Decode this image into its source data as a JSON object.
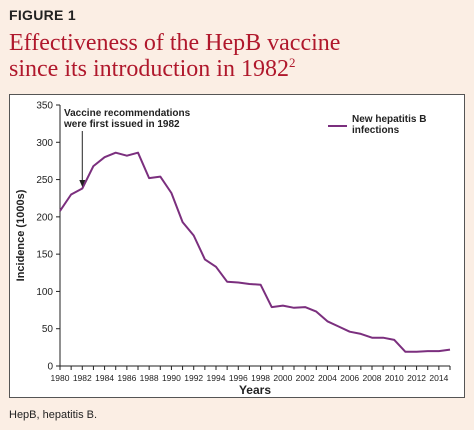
{
  "figure_label": "FIGURE 1",
  "headline": {
    "line1": "Effectiveness of the HepB vaccine",
    "line2": "since its introduction in 1982",
    "superscript": "2"
  },
  "footnote": "HepB, hepatitis B.",
  "colors": {
    "background": "#fbeee4",
    "headline": "#b0182c",
    "series": "#7b2f7e"
  },
  "chart_data": {
    "type": "line",
    "xlabel": "Years",
    "ylabel": "Incidence (1000s)",
    "xlim": [
      1980,
      2015
    ],
    "ylim": [
      0,
      350
    ],
    "x_ticks": [
      1980,
      1982,
      1984,
      1986,
      1988,
      1990,
      1992,
      1994,
      1996,
      1998,
      2000,
      2002,
      2004,
      2006,
      2008,
      2010,
      2012,
      2014
    ],
    "y_ticks": [
      0,
      50,
      100,
      150,
      200,
      250,
      300,
      350
    ],
    "grid": false,
    "legend_position": "top-right",
    "series": [
      {
        "name": "New hepatitis B infections",
        "x": [
          1980,
          1981,
          1982,
          1983,
          1984,
          1985,
          1986,
          1987,
          1988,
          1989,
          1990,
          1991,
          1992,
          1993,
          1994,
          1995,
          1996,
          1997,
          1998,
          1999,
          2000,
          2001,
          2002,
          2003,
          2004,
          2005,
          2006,
          2007,
          2008,
          2009,
          2010,
          2011,
          2012,
          2013,
          2014,
          2015
        ],
        "y": [
          208,
          230,
          238,
          268,
          280,
          286,
          282,
          286,
          252,
          254,
          232,
          193,
          175,
          143,
          133,
          113,
          112,
          110,
          109,
          79,
          81,
          78,
          79,
          73,
          60,
          53,
          46,
          43,
          38,
          38,
          35,
          19,
          19,
          20,
          20,
          22
        ]
      }
    ],
    "annotations": [
      {
        "text_line1": "Vaccine recommendations",
        "text_line2": "were first issued in 1982",
        "x": 1982,
        "y": 240
      }
    ]
  }
}
